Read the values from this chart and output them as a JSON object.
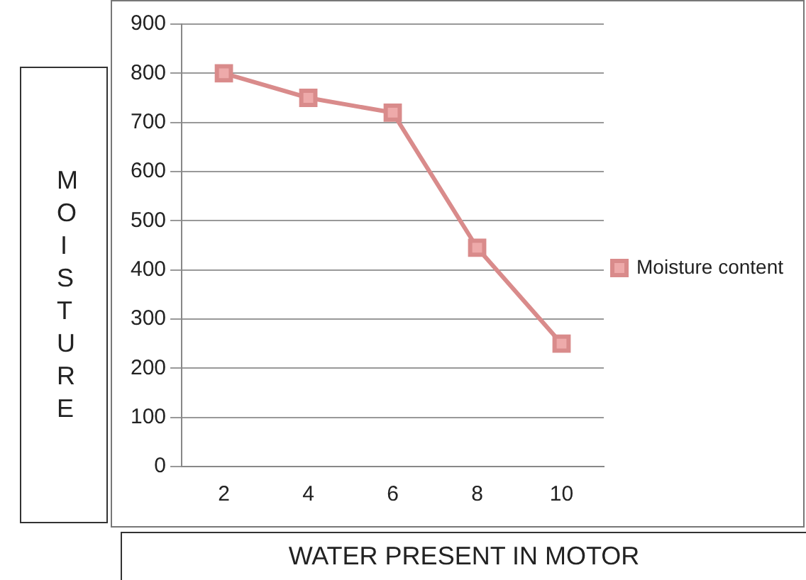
{
  "chart_data": {
    "type": "line",
    "xlabel": "WATER PRESENT IN MOTOR",
    "ylabel": "MOISTURE",
    "categories": [
      "2",
      "4",
      "6",
      "8",
      "10"
    ],
    "series": [
      {
        "name": "Moisture content",
        "color": "#d98b8b",
        "values": [
          800,
          750,
          720,
          445,
          250
        ]
      }
    ],
    "ylim": [
      0,
      900
    ],
    "yticks": [
      0,
      100,
      200,
      300,
      400,
      500,
      600,
      700,
      800,
      900
    ],
    "grid": "y",
    "legend": "right",
    "marker": "square",
    "line_style": "solid"
  }
}
